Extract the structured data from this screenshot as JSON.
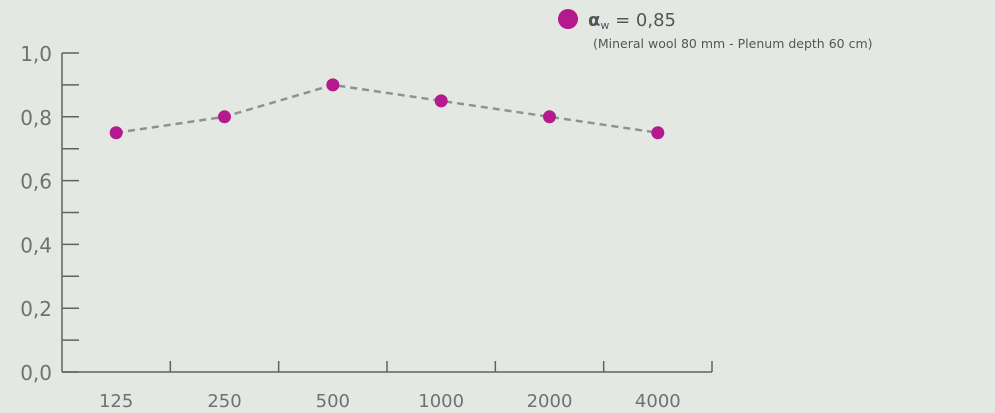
{
  "chart_data": {
    "type": "line",
    "categories": [
      "125",
      "250",
      "500",
      "1000",
      "2000",
      "4000"
    ],
    "series": [
      {
        "name": "αw = 0,85",
        "values": [
          0.75,
          0.8,
          0.9,
          0.85,
          0.8,
          0.75
        ],
        "color": "#b5198e"
      }
    ],
    "y_ticks": [
      "0,0",
      "0,2",
      "0,4",
      "0,6",
      "0,8",
      "1,0"
    ],
    "ylim": [
      0,
      1.0
    ],
    "line_style": "dashed",
    "line_color": "#8e9294",
    "legend": {
      "placement": "top-right",
      "symbol": "α",
      "subscript": "w",
      "value_text": " = 0,85",
      "note": "(Mineral wool 80 mm - Plenum depth 60 cm)"
    },
    "grid": false
  }
}
